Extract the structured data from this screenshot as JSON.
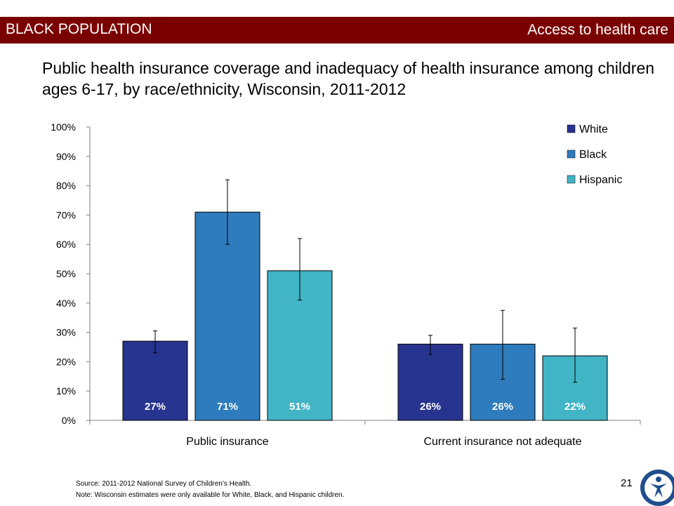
{
  "header": {
    "left_label": "BLACK POPULATION",
    "right_label": "Access to health care"
  },
  "title": "Public health insurance coverage and inadequacy of health insurance among children ages 6-17, by race/ethnicity, Wisconsin, 2011-2012",
  "footer": {
    "source": "Source: 2011-2012  National Survey of Children’s Health.",
    "note": "Note: Wisconsin estimates were  only available for White, Black, and Hispanic children.",
    "page_number": "21"
  },
  "colors": {
    "banner": "#7a0000",
    "white": "#27348f",
    "black": "#2e7cbd",
    "hispanic": "#41b5c6"
  },
  "chart_data": {
    "type": "bar",
    "categories": [
      "Public insurance",
      "Current insurance not adequate"
    ],
    "series": [
      {
        "name": "White",
        "values": [
          27,
          26
        ],
        "error_low": [
          23,
          22.5
        ],
        "error_high": [
          30.5,
          29
        ],
        "labels": [
          "27%",
          "26%"
        ],
        "color": "#27348f"
      },
      {
        "name": "Black",
        "values": [
          71,
          26
        ],
        "error_low": [
          60,
          14
        ],
        "error_high": [
          82,
          37.5
        ],
        "labels": [
          "71%",
          "26%"
        ],
        "color": "#2e7cbd"
      },
      {
        "name": "Hispanic",
        "values": [
          51,
          22
        ],
        "error_low": [
          41,
          13
        ],
        "error_high": [
          62,
          31.5
        ],
        "labels": [
          "51%",
          "22%"
        ],
        "color": "#41b5c6"
      }
    ],
    "ylim": [
      0,
      100
    ],
    "yticks": [
      "0%",
      "10%",
      "20%",
      "30%",
      "40%",
      "50%",
      "60%",
      "70%",
      "80%",
      "90%",
      "100%"
    ],
    "legend_position": "top-right",
    "grid": false
  }
}
